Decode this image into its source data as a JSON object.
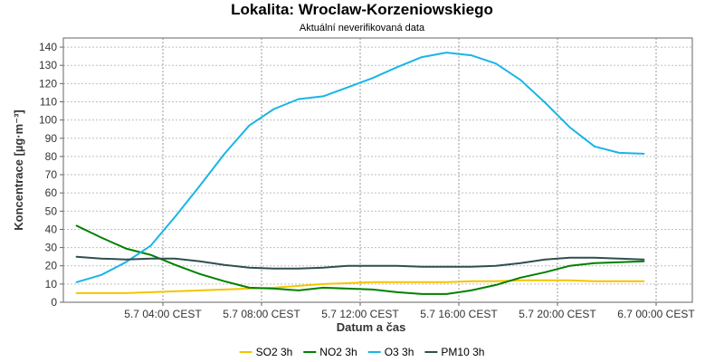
{
  "chart_data": {
    "type": "line",
    "title": "Lokalita: Wroclaw-Korzeniowskiego",
    "subtitle": "Aktuální neverifikovaná data",
    "xlabel": "Datum a čas",
    "ylabel": "Koncentrace [µg·m⁻³]",
    "ylim": [
      0,
      145
    ],
    "yticks": [
      0,
      10,
      20,
      30,
      40,
      50,
      60,
      70,
      80,
      90,
      100,
      110,
      120,
      130,
      140
    ],
    "xlim": [
      0,
      24
    ],
    "xticks": [
      {
        "x": 4,
        "label": "5.7 04:00 CEST"
      },
      {
        "x": 8,
        "label": "5.7 08:00 CEST"
      },
      {
        "x": 12,
        "label": "5.7 12:00 CEST"
      },
      {
        "x": 16,
        "label": "5.7 16:00 CEST"
      },
      {
        "x": 20,
        "label": "5.7 20:00 CEST"
      },
      {
        "x": 24,
        "label": "6.7 00:00 CEST"
      }
    ],
    "x": [
      0.5,
      1.5,
      2.5,
      3.5,
      4.5,
      5.5,
      6.5,
      7.5,
      8.5,
      9.5,
      10.5,
      11.5,
      12.5,
      13.5,
      14.5,
      15.5,
      16.5,
      17.5,
      18.5,
      19.5,
      20.5,
      21.5,
      22.5,
      23.5
    ],
    "grid": true,
    "legend": "bottom",
    "series": [
      {
        "name": "SO2 3h",
        "color": "#f5c400",
        "values": [
          5,
          5,
          5,
          5.5,
          6,
          6.5,
          7,
          7.5,
          8,
          9,
          10,
          10.5,
          11,
          11,
          11,
          11,
          11.5,
          11.5,
          12,
          12,
          12,
          11.5,
          11.5,
          11.5
        ]
      },
      {
        "name": "NO2 3h",
        "color": "#008000",
        "values": [
          42,
          35.5,
          29.5,
          26,
          20.5,
          15.5,
          11.5,
          8,
          7.5,
          6.5,
          8,
          7.5,
          7,
          5.5,
          4.5,
          4.5,
          6.5,
          9.5,
          13.5,
          16.5,
          20,
          21.5,
          22,
          22.5
        ]
      },
      {
        "name": "O3 3h",
        "color": "#19b5e6",
        "values": [
          11,
          15,
          22,
          31,
          47,
          64,
          81.5,
          97,
          106,
          111.5,
          113,
          118,
          123,
          129,
          134.5,
          137,
          135.5,
          131,
          122,
          109.5,
          96,
          85.5,
          82,
          81.5
        ]
      },
      {
        "name": "PM10 3h",
        "color": "#2f4f4f",
        "values": [
          25,
          24,
          23.5,
          24,
          24,
          22.5,
          20.5,
          19,
          18.5,
          18.5,
          19,
          20,
          20,
          20,
          19.5,
          19.5,
          19.5,
          20,
          21.5,
          23.5,
          24.5,
          24.5,
          24,
          23.5
        ]
      }
    ]
  }
}
